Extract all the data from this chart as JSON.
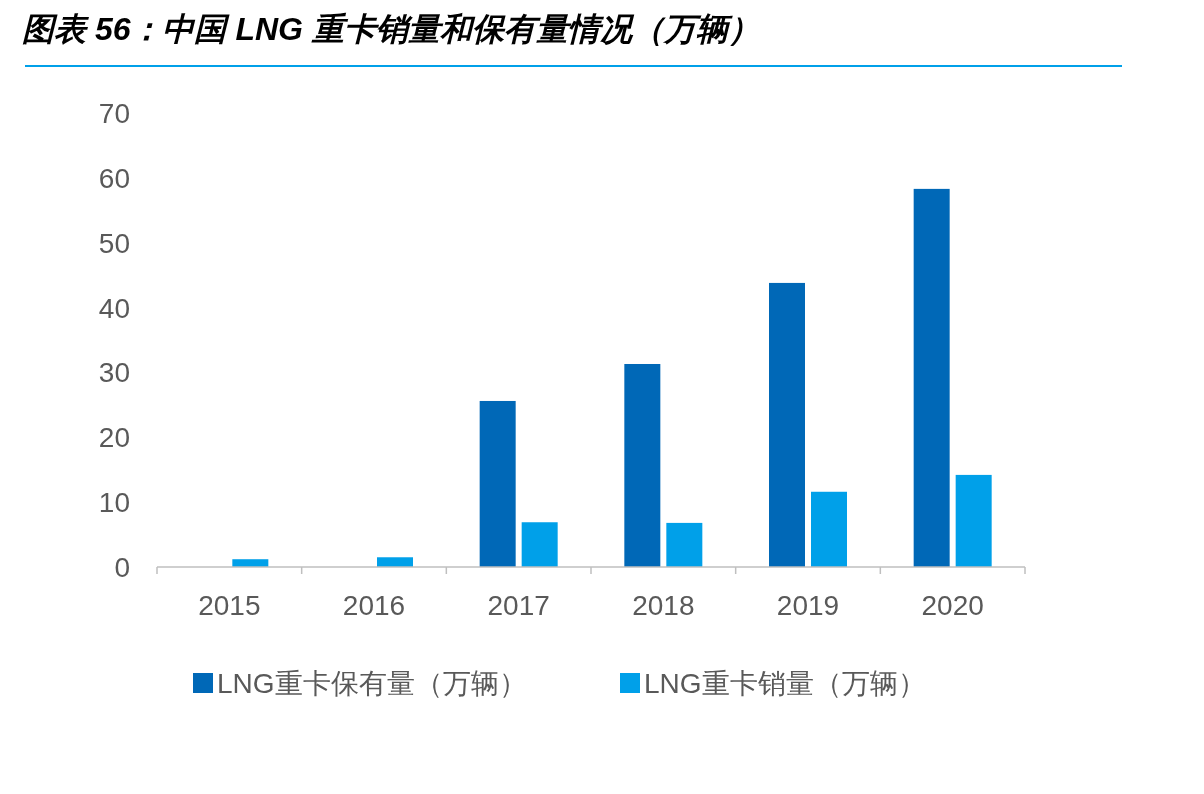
{
  "chart_data": {
    "type": "bar",
    "title": "图表 56：中国 LNG 重卡销量和保有量情况（万辆）",
    "categories": [
      "2015",
      "2016",
      "2017",
      "2018",
      "2019",
      "2020"
    ],
    "series": [
      {
        "name": "LNG重卡保有量（万辆）",
        "color": "#0068b7",
        "values": [
          null,
          null,
          25.6,
          31.3,
          43.8,
          58.3
        ]
      },
      {
        "name": "LNG重卡销量（万辆）",
        "color": "#00a0e9",
        "values": [
          1.2,
          1.5,
          6.9,
          6.8,
          11.6,
          14.2
        ]
      }
    ],
    "ylim": [
      0,
      70
    ],
    "yticks": [
      0,
      10,
      20,
      30,
      40,
      50,
      60,
      70
    ],
    "legend": "bottom"
  }
}
